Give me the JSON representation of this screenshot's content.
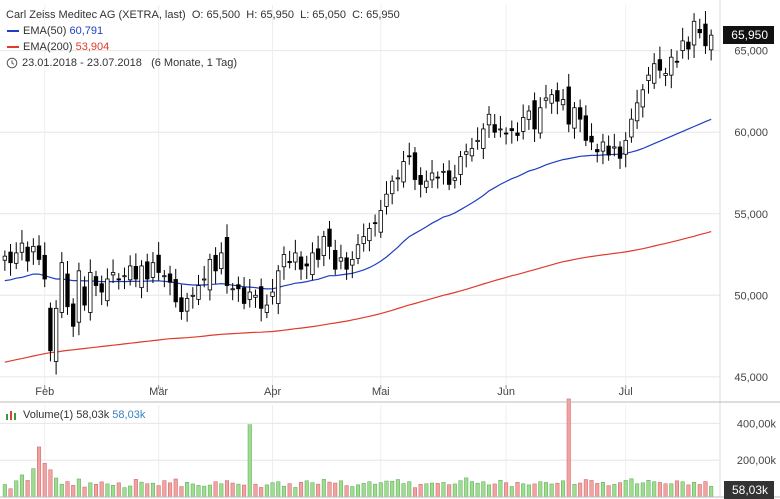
{
  "header": {
    "title": "Carl Zeiss Meditec AG (XETRA, last)",
    "ohlc": "O: 65,500  H: 65,950  L: 65,050  C: 65,950",
    "ema50_label": "EMA(50)",
    "ema50_value": "60,791",
    "ema200_label": "EMA(200)",
    "ema200_value": "53,904",
    "range": "23.01.2018 - 23.07.2018",
    "range_note": "(6 Monate, 1 Tag)",
    "volume_label": "Volume(1)",
    "volume_value": "58,03k",
    "volume_value2": "58,03k"
  },
  "colors": {
    "up": "#ffffff",
    "down": "#000000",
    "ema50": "#1f3fbf",
    "ema200": "#e03a2a",
    "vol_up": "#9edc8e",
    "vol_down": "#f1a3a3",
    "pill": "#111111",
    "vol_pill": "#333333"
  },
  "chart_data": {
    "type": "candlestick",
    "price_axis": {
      "ticks": [
        45000,
        50000,
        55000,
        60000,
        65000
      ],
      "tick_labels": [
        "45,000",
        "50,000",
        "55,000",
        "60,000",
        "65,000"
      ],
      "ylim": [
        44500,
        67800
      ]
    },
    "month_labels": [
      {
        "label": "Feb",
        "index": 7
      },
      {
        "label": "Mär",
        "index": 27
      },
      {
        "label": "Apr",
        "index": 47
      },
      {
        "label": "Mai",
        "index": 66
      },
      {
        "label": "Jun",
        "index": 88
      },
      {
        "label": "Jul",
        "index": 109
      }
    ],
    "last_price_label": "65,950",
    "last_price": 65950,
    "ema50_last": 60791,
    "ema200_last": 53904,
    "volume_axis": {
      "ticks": [
        200000,
        400000
      ],
      "tick_labels": [
        "200,00k",
        "400,00k"
      ],
      "ylim": [
        0,
        500000
      ]
    },
    "last_volume_label": "58,03k",
    "closes": [
      52.4,
      52.0,
      52.6,
      53.2,
      52.1,
      53.0,
      52.2,
      51.0,
      46.6,
      49.2,
      52.0,
      49.3,
      48.1,
      51.5,
      49.4,
      51.4,
      50.6,
      50.2,
      51.0,
      51.4,
      51.0,
      51.2,
      51.8,
      51.0,
      51.8,
      51.0,
      52.0,
      51.4,
      51.2,
      50.8,
      49.6,
      49.0,
      49.8,
      50.0,
      50.6,
      51.0,
      52.2,
      51.5,
      52.6,
      50.6,
      50.4,
      50.4,
      49.5,
      50.2,
      50.0,
      49.2,
      49.4,
      50.2,
      51.5,
      52.5,
      52.0,
      52.6,
      51.6,
      51.8,
      52.6,
      52.2,
      53.6,
      53.0,
      51.6,
      52.3,
      51.6,
      52.2,
      53.1,
      53.6,
      54.1,
      54.4,
      55.2,
      56.2,
      57.0,
      57.2,
      58.2,
      58.5,
      57.1,
      56.8,
      57.0,
      57.5,
      57.2,
      57.6,
      56.8,
      57.2,
      58.5,
      58.8,
      59.0,
      59.5,
      60.2,
      61.1,
      60.0,
      60.2,
      59.9,
      60.1,
      59.8,
      60.9,
      61.3,
      60.2,
      61.5,
      62.1,
      62.3,
      61.9,
      62.0,
      60.5,
      61.5,
      60.8,
      59.5,
      59.4,
      58.8,
      59.4,
      58.6,
      59.1,
      58.4,
      59.5,
      60.8,
      61.8,
      62.6,
      63.5,
      64.2,
      63.8,
      63.6,
      64.6,
      64.3,
      65.6,
      65.1,
      66.8,
      66.1,
      65.3,
      65.95
    ],
    "ema50": [
      50.9,
      50.95,
      51.05,
      51.1,
      51.2,
      51.3,
      51.3,
      51.2,
      51.1,
      51.0,
      51.0,
      50.95,
      50.9,
      50.9,
      50.88,
      50.88,
      50.86,
      50.84,
      50.84,
      50.84,
      50.85,
      50.84,
      50.85,
      50.86,
      50.86,
      50.87,
      50.88,
      50.88,
      50.86,
      50.82,
      50.76,
      50.7,
      50.66,
      50.63,
      50.63,
      50.63,
      50.67,
      50.68,
      50.72,
      50.68,
      50.62,
      50.58,
      50.52,
      50.5,
      50.47,
      50.42,
      50.39,
      50.4,
      50.48,
      50.58,
      50.65,
      50.74,
      50.78,
      50.84,
      50.92,
      50.98,
      51.1,
      51.2,
      51.2,
      51.25,
      51.3,
      51.35,
      51.45,
      51.56,
      51.7,
      51.88,
      52.1,
      52.35,
      52.65,
      52.95,
      53.3,
      53.6,
      53.8,
      54.0,
      54.2,
      54.42,
      54.6,
      54.8,
      54.9,
      55.05,
      55.25,
      55.45,
      55.66,
      55.88,
      56.12,
      56.4,
      56.6,
      56.8,
      56.98,
      57.15,
      57.28,
      57.45,
      57.62,
      57.72,
      57.85,
      58.0,
      58.12,
      58.22,
      58.32,
      58.38,
      58.45,
      58.52,
      58.55,
      58.58,
      58.58,
      58.6,
      58.62,
      58.64,
      58.65,
      58.7,
      58.78,
      58.88,
      59.0,
      59.15,
      59.3,
      59.45,
      59.6,
      59.75,
      59.9,
      60.05,
      60.2,
      60.35,
      60.5,
      60.65,
      60.79
    ],
    "ema200": [
      45.9,
      45.98,
      46.05,
      46.12,
      46.2,
      46.28,
      46.35,
      46.42,
      46.48,
      46.52,
      46.58,
      46.62,
      46.66,
      46.7,
      46.74,
      46.78,
      46.82,
      46.86,
      46.9,
      46.94,
      46.98,
      47.02,
      47.06,
      47.1,
      47.14,
      47.18,
      47.22,
      47.26,
      47.3,
      47.34,
      47.36,
      47.38,
      47.4,
      47.43,
      47.46,
      47.5,
      47.54,
      47.57,
      47.61,
      47.63,
      47.65,
      47.67,
      47.69,
      47.71,
      47.73,
      47.74,
      47.76,
      47.78,
      47.82,
      47.86,
      47.9,
      47.95,
      47.99,
      48.03,
      48.08,
      48.13,
      48.19,
      48.25,
      48.3,
      48.36,
      48.42,
      48.49,
      48.56,
      48.63,
      48.71,
      48.79,
      48.88,
      48.98,
      49.08,
      49.19,
      49.3,
      49.41,
      49.5,
      49.6,
      49.7,
      49.8,
      49.9,
      50.0,
      50.08,
      50.17,
      50.27,
      50.37,
      50.47,
      50.58,
      50.69,
      50.8,
      50.9,
      51.0,
      51.1,
      51.2,
      51.28,
      51.38,
      51.48,
      51.57,
      51.67,
      51.77,
      51.87,
      51.97,
      52.06,
      52.13,
      52.2,
      52.27,
      52.33,
      52.38,
      52.43,
      52.48,
      52.52,
      52.57,
      52.61,
      52.66,
      52.72,
      52.79,
      52.86,
      52.94,
      53.02,
      53.1,
      53.18,
      53.26,
      53.35,
      53.44,
      53.53,
      53.62,
      53.72,
      53.81,
      53.904
    ],
    "volumes_k": [
      68,
      45,
      88,
      120,
      90,
      154,
      272,
      183,
      148,
      103,
      70,
      84,
      63,
      98,
      54,
      77,
      69,
      82,
      71,
      64,
      77,
      51,
      60,
      96,
      81,
      72,
      75,
      62,
      89,
      77,
      98,
      57,
      80,
      71,
      63,
      59,
      65,
      83,
      72,
      89,
      76,
      70,
      65,
      393,
      70,
      52,
      66,
      78,
      83,
      59,
      73,
      52,
      80,
      88,
      78,
      70,
      96,
      81,
      76,
      88,
      62,
      57,
      66,
      74,
      83,
      70,
      78,
      87,
      86,
      95,
      73,
      83,
      51,
      69,
      72,
      76,
      74,
      79,
      67,
      71,
      89,
      104,
      84,
      75,
      83,
      66,
      71,
      91,
      78,
      57,
      80,
      72,
      66,
      71,
      83,
      79,
      71,
      75,
      88,
      533,
      69,
      76,
      95,
      90,
      74,
      80,
      62,
      69,
      78,
      90,
      99,
      72,
      77,
      91,
      83,
      79,
      72,
      72,
      88,
      83,
      66,
      80,
      68,
      84,
      58
    ],
    "volume_up": [
      1,
      0,
      1,
      1,
      0,
      1,
      0,
      0,
      0,
      1,
      1,
      0,
      0,
      1,
      0,
      1,
      0,
      0,
      1,
      1,
      0,
      1,
      1,
      0,
      1,
      0,
      1,
      0,
      0,
      0,
      0,
      0,
      1,
      1,
      1,
      1,
      1,
      0,
      1,
      0,
      0,
      1,
      0,
      1,
      0,
      0,
      1,
      1,
      1,
      1,
      0,
      1,
      0,
      1,
      1,
      0,
      1,
      0,
      0,
      1,
      0,
      1,
      1,
      1,
      1,
      1,
      1,
      1,
      1,
      1,
      1,
      1,
      0,
      0,
      1,
      1,
      0,
      1,
      0,
      1,
      1,
      1,
      1,
      1,
      1,
      1,
      0,
      1,
      0,
      1,
      0,
      1,
      1,
      0,
      1,
      1,
      1,
      0,
      1,
      0,
      1,
      0,
      0,
      0,
      0,
      1,
      0,
      1,
      0,
      1,
      1,
      1,
      1,
      1,
      1,
      0,
      0,
      1,
      0,
      1,
      0,
      1,
      0,
      0,
      1
    ]
  }
}
